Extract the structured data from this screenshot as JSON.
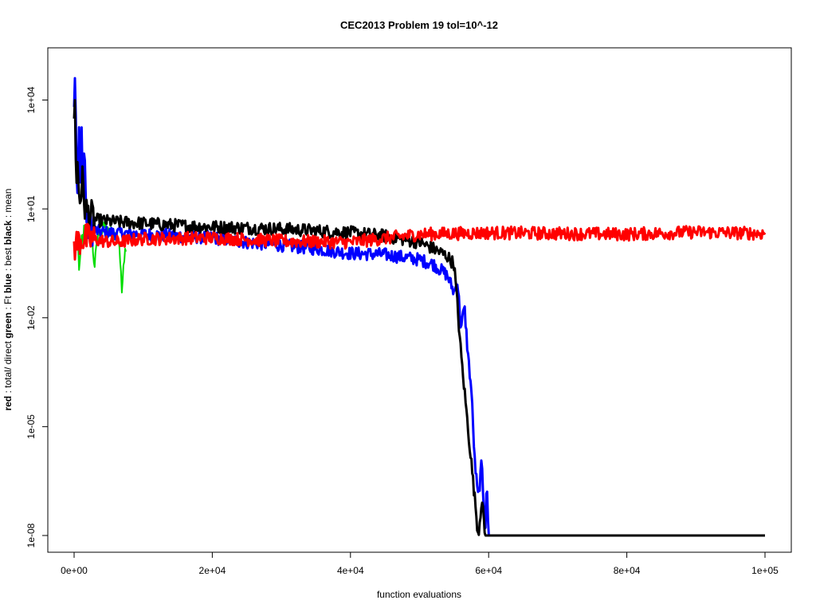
{
  "chart_data": {
    "type": "line",
    "title": "CEC2013 Problem  19  tol=10^-12",
    "xlabel": "function evaluations",
    "ylabel_parts": [
      {
        "text": "red",
        "bold": true
      },
      {
        "text": " : total/ direct ",
        "bold": false
      },
      {
        "text": "green",
        "bold": true
      },
      {
        "text": " : Ft ",
        "bold": false
      },
      {
        "text": "blue",
        "bold": true
      },
      {
        "text": " : best ",
        "bold": false
      },
      {
        "text": "black",
        "bold": true
      },
      {
        "text": " : mean",
        "bold": false
      }
    ],
    "x_scale": "linear",
    "y_scale": "log10",
    "xlim": [
      0,
      100000
    ],
    "ylim": [
      1e-09,
      200000.0
    ],
    "x_ticks": [
      {
        "value": 0,
        "label": "0e+00"
      },
      {
        "value": 20000,
        "label": "2e+04"
      },
      {
        "value": 40000,
        "label": "4e+04"
      },
      {
        "value": 60000,
        "label": "6e+04"
      },
      {
        "value": 80000,
        "label": "8e+04"
      },
      {
        "value": 100000,
        "label": "1e+05"
      }
    ],
    "y_ticks": [
      {
        "value": 1e-08,
        "label": "1e-08"
      },
      {
        "value": 1e-05,
        "label": "1e-05"
      },
      {
        "value": 0.01,
        "label": "1e-02"
      },
      {
        "value": 10,
        "label": "1e+01"
      },
      {
        "value": 10000,
        "label": "1e+04"
      }
    ],
    "grid": false,
    "series": [
      {
        "color": "#00dd00",
        "width": 2,
        "points": [
          [
            0,
            0.7
          ],
          [
            300,
            0.75
          ],
          [
            700,
            0.5
          ],
          [
            800,
            0.12
          ],
          [
            1000,
            0.8
          ],
          [
            1500,
            2.2
          ],
          [
            2000,
            3.0
          ],
          [
            2500,
            2.0
          ],
          [
            3000,
            0.3
          ],
          [
            3500,
            2.5
          ],
          [
            4000,
            2.2
          ],
          [
            4500,
            3.5
          ],
          [
            5000,
            2.0
          ],
          [
            5500,
            2.5
          ],
          [
            6000,
            1.8
          ],
          [
            6500,
            1.5
          ],
          [
            6900,
            0.05
          ],
          [
            7100,
            0.3
          ],
          [
            7500,
            1.0
          ]
        ]
      },
      {
        "color": "#0000ff",
        "width": 3,
        "points": [
          [
            0,
            10000.0
          ],
          [
            150,
            100000.0
          ],
          [
            300,
            500
          ],
          [
            500,
            10
          ],
          [
            700,
            3000
          ],
          [
            900,
            8
          ],
          [
            1100,
            2000
          ],
          [
            1300,
            60
          ],
          [
            1500,
            800
          ],
          [
            1700,
            10
          ],
          [
            2000,
            3
          ],
          [
            3000,
            2.5
          ],
          [
            5000,
            2.2
          ],
          [
            10000,
            2.0
          ],
          [
            15000,
            1.8
          ],
          [
            20000,
            1.6
          ],
          [
            25000,
            1.2
          ],
          [
            30000,
            1.0
          ],
          [
            35000,
            0.8
          ],
          [
            40000,
            0.6
          ],
          [
            45000,
            0.55
          ],
          [
            50000,
            0.4
          ],
          [
            52000,
            0.3
          ],
          [
            54000,
            0.15
          ],
          [
            55000,
            0.05
          ],
          [
            55500,
            0.1
          ],
          [
            56000,
            0.005
          ],
          [
            56500,
            0.02
          ],
          [
            57000,
            0.001
          ],
          [
            57500,
            0.0001
          ],
          [
            58000,
            1e-06
          ],
          [
            58500,
            1e-07
          ],
          [
            59000,
            1e-06
          ],
          [
            59500,
            1e-08
          ],
          [
            59700,
            3e-07
          ],
          [
            60000,
            1e-08
          ],
          [
            100000,
            1e-08
          ]
        ]
      },
      {
        "color": "#000000",
        "width": 3,
        "points": [
          [
            0,
            2000
          ],
          [
            150,
            30000.0
          ],
          [
            300,
            20
          ],
          [
            500,
            200
          ],
          [
            800,
            15
          ],
          [
            1200,
            60
          ],
          [
            1600,
            10
          ],
          [
            2000,
            8
          ],
          [
            3000,
            5
          ],
          [
            5000,
            4.5
          ],
          [
            10000,
            4.0
          ],
          [
            15000,
            3.5
          ],
          [
            20000,
            3.2
          ],
          [
            25000,
            3.0
          ],
          [
            30000,
            2.8
          ],
          [
            35000,
            2.5
          ],
          [
            40000,
            2.2
          ],
          [
            45000,
            1.8
          ],
          [
            50000,
            1.2
          ],
          [
            52000,
            0.8
          ],
          [
            54000,
            0.5
          ],
          [
            55000,
            0.3
          ],
          [
            55500,
            0.02
          ],
          [
            56000,
            0.001
          ],
          [
            56500,
            0.0001
          ],
          [
            57000,
            1e-05
          ],
          [
            57500,
            1e-06
          ],
          [
            58000,
            1e-07
          ],
          [
            58500,
            1e-08
          ],
          [
            59000,
            1e-07
          ],
          [
            59500,
            1e-08
          ],
          [
            100000,
            1e-08
          ]
        ]
      },
      {
        "color": "#ff0000",
        "width": 3,
        "points": [
          [
            0,
            0.9
          ],
          [
            500,
            1.2
          ],
          [
            1000,
            1.5
          ],
          [
            3000,
            1.4
          ],
          [
            6000,
            1.2
          ],
          [
            10000,
            1.5
          ],
          [
            20000,
            1.6
          ],
          [
            30000,
            1.3
          ],
          [
            40000,
            1.2
          ],
          [
            50000,
            2.0
          ],
          [
            60000,
            2.2
          ],
          [
            70000,
            2.1
          ],
          [
            80000,
            2.0
          ],
          [
            90000,
            2.3
          ],
          [
            100000,
            2.1
          ]
        ]
      }
    ]
  }
}
